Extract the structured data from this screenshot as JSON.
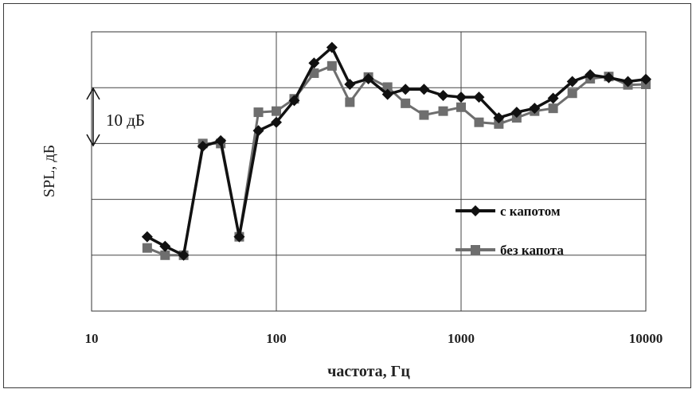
{
  "chart_data": {
    "type": "line",
    "title": "",
    "xlabel": "частота, Гц",
    "ylabel": "SPL, дБ",
    "x_scale": "log",
    "xlim": [
      10,
      10000
    ],
    "x_ticks": [
      {
        "value": 10,
        "label": "10"
      },
      {
        "value": 100,
        "label": "100"
      },
      {
        "value": 1000,
        "label": "1000"
      },
      {
        "value": 10000,
        "label": "10000"
      }
    ],
    "ylim": [
      0,
      50
    ],
    "y_grid": [
      0,
      10,
      20,
      30,
      40,
      50
    ],
    "grid": true,
    "legend_position": "center-right",
    "annotation": {
      "text": "10 дБ",
      "from": 30,
      "to": 40
    },
    "x": [
      20,
      25,
      31.5,
      40,
      50,
      63,
      80,
      100,
      125,
      160,
      200,
      250,
      315,
      400,
      500,
      630,
      800,
      1000,
      1250,
      1600,
      2000,
      2500,
      3150,
      4000,
      5000,
      6300,
      8000,
      10000
    ],
    "series": [
      {
        "name": "с капотом",
        "color": "#111111",
        "marker": "diamond",
        "values": [
          13.3,
          11.6,
          10.0,
          29.5,
          30.5,
          13.3,
          32.3,
          33.8,
          37.7,
          44.4,
          47.2,
          40.6,
          41.6,
          38.8,
          39.7,
          39.7,
          38.6,
          38.3,
          38.3,
          34.6,
          35.6,
          36.3,
          38.1,
          41.1,
          42.3,
          41.8,
          41.1,
          41.5
        ]
      },
      {
        "name": "без капота",
        "color": "#6e6e6e",
        "marker": "square",
        "values": [
          11.3,
          10.0,
          10.0,
          30.0,
          30.0,
          13.3,
          35.6,
          35.8,
          38.0,
          42.6,
          43.9,
          37.4,
          41.9,
          40.1,
          37.2,
          35.1,
          35.8,
          36.5,
          33.8,
          33.5,
          34.6,
          35.8,
          36.3,
          39.0,
          41.6,
          42.0,
          40.5,
          40.6
        ]
      }
    ]
  }
}
